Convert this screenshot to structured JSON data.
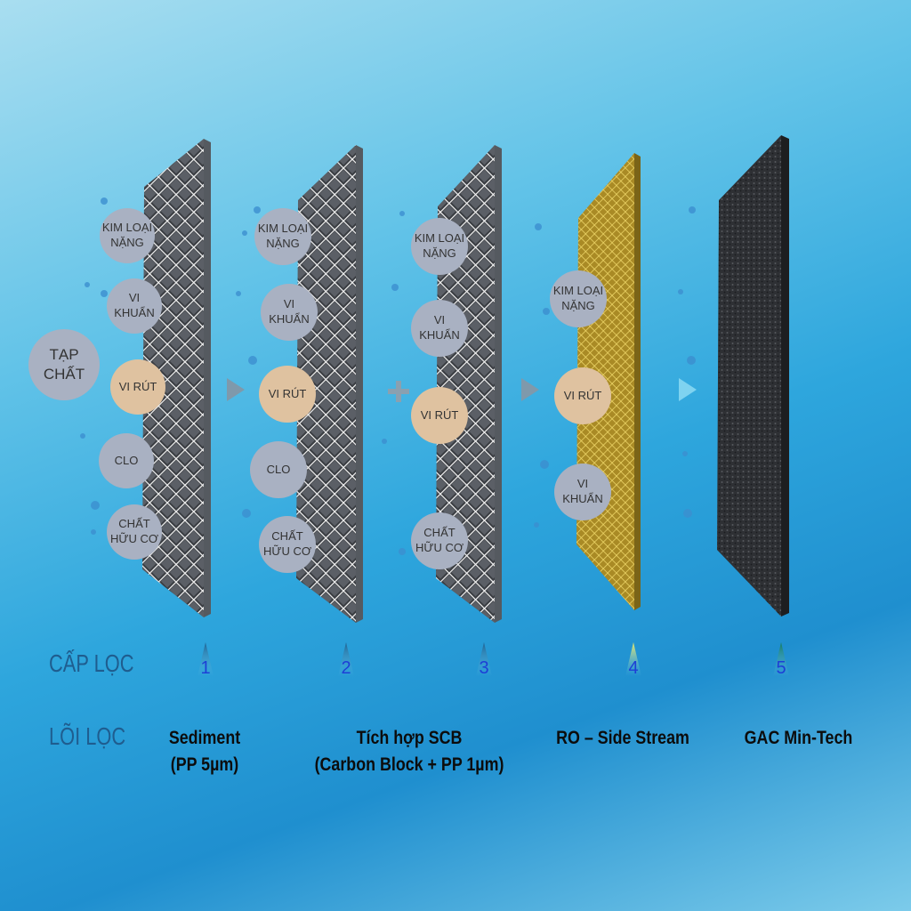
{
  "input_label": "TẠP CHẤT",
  "filters": [
    {
      "stage": "1",
      "core": "Sediment\n(PP 5µm)",
      "material": "mesh-grey",
      "blocked": [
        "KIM LOẠI\nNẶNG",
        "VI\nKHUẨN",
        "VI RÚT",
        "CLO",
        "CHẤT\nHỮU CƠ"
      ]
    },
    {
      "stage": "2",
      "material": "mesh-grey",
      "blocked": [
        "KIM LOẠI\nNẶNG",
        "VI\nKHUẨN",
        "VI RÚT",
        "CLO",
        "CHẤT\nHỮU CƠ"
      ]
    },
    {
      "stage": "3",
      "material": "mesh-grey",
      "blocked": [
        "KIM LOẠI\nNẶNG",
        "VI\nKHUẨN",
        "VI RÚT",
        "CHẤT\nHỮU CƠ"
      ]
    },
    {
      "stage": "4",
      "core": "RO – Side Stream",
      "material": "mesh-gold",
      "blocked": [
        "KIM LOẠI\nNẶNG",
        "VI RÚT",
        "VI\nKHUẨN"
      ]
    },
    {
      "stage": "5",
      "core": "GAC Min-Tech",
      "material": "granular-black",
      "blocked": []
    }
  ],
  "combined_core": "Tích hợp SCB\n(Carbon Block + PP 1µm)",
  "row_labels": {
    "stage": "CẤP LỌC",
    "core": "LÕI LỌC"
  },
  "colors": {
    "circle": "#a9b1c2",
    "virus": "#dfc2a0",
    "gold": "#c9a93a",
    "label": "#1f5d8f",
    "stage_number": "#1d3fd6"
  }
}
